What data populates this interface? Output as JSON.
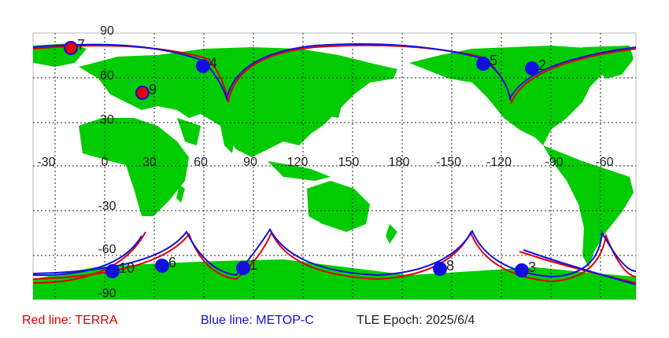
{
  "map": {
    "lon_labels": [
      "-30",
      "0",
      "30",
      "60",
      "90",
      "120",
      "150",
      "180",
      "-150",
      "-120",
      "-90",
      "-60"
    ],
    "lat_labels": [
      "90",
      "60",
      "30",
      "-30",
      "-60",
      "-90"
    ],
    "satellites": [
      {
        "label": "1"
      },
      {
        "label": "2"
      },
      {
        "label": "3"
      },
      {
        "label": "4"
      },
      {
        "label": "5"
      },
      {
        "label": "6"
      },
      {
        "label": "7"
      },
      {
        "label": "8"
      },
      {
        "label": "9"
      },
      {
        "label": "10"
      }
    ]
  },
  "legend": {
    "red": "Red line: TERRA",
    "blue": "Blue line: METOP-C",
    "epoch": "TLE Epoch: 2025/6/4"
  }
}
